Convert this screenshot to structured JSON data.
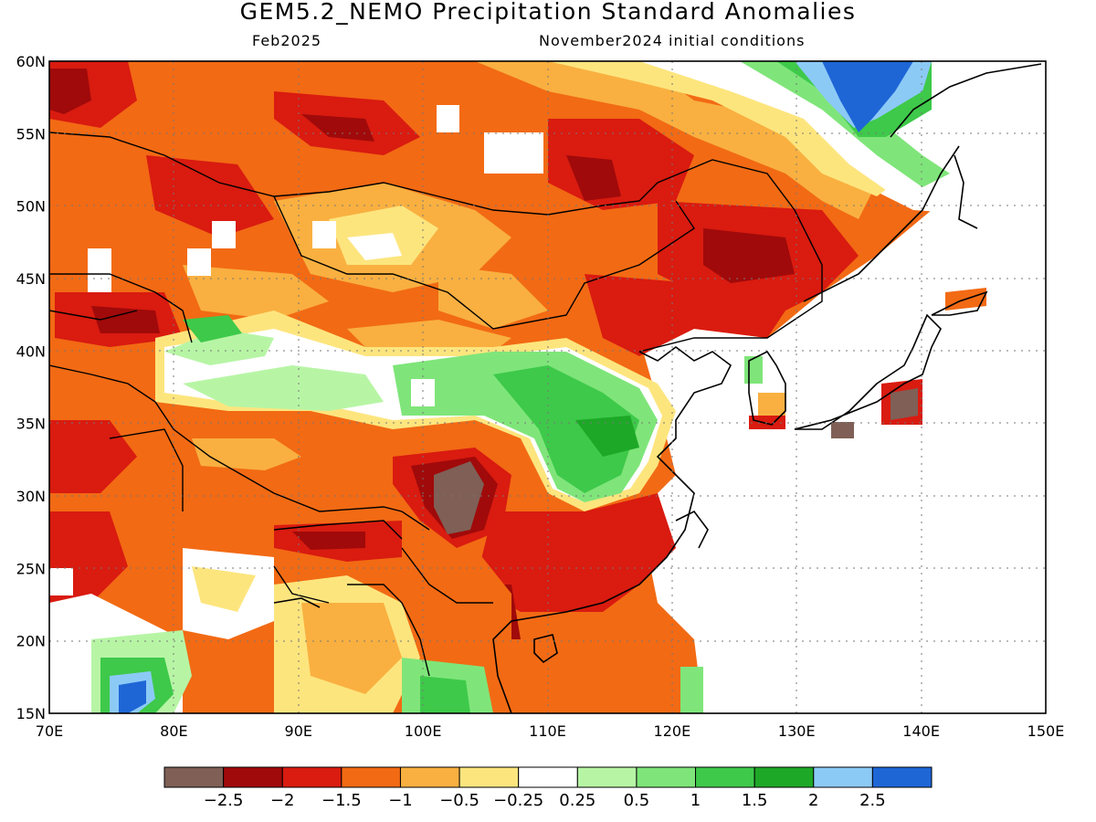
{
  "title": "GEM5.2_NEMO Precipitation Standard Anomalies",
  "subtitle_left": "Feb2025",
  "subtitle_right": "November2024 initial conditions",
  "lat_labels": [
    "60N",
    "55N",
    "50N",
    "45N",
    "40N",
    "35N",
    "30N",
    "25N",
    "20N",
    "15N"
  ],
  "lon_labels": [
    "70E",
    "80E",
    "90E",
    "100E",
    "110E",
    "120E",
    "130E",
    "140E",
    "150E"
  ],
  "colorbar": {
    "colors": [
      "#7f5f56",
      "#a00a0a",
      "#d91b10",
      "#f26a14",
      "#f9b040",
      "#fde57e",
      "#ffffff",
      "#b7f5a5",
      "#7fe57a",
      "#3ec94a",
      "#1ea827",
      "#8ccaf6",
      "#1e66d6"
    ],
    "labels": [
      "−2.5",
      "−2",
      "−1.5",
      "−1",
      "−0.5",
      "−0.25",
      "0.25",
      "0.5",
      "1",
      "1.5",
      "2",
      "2.5"
    ]
  },
  "map": {
    "ocean_color": "#ffffff",
    "grid": "dotted",
    "lon_range": [
      70,
      150
    ],
    "lat_range": [
      15,
      60
    ]
  }
}
